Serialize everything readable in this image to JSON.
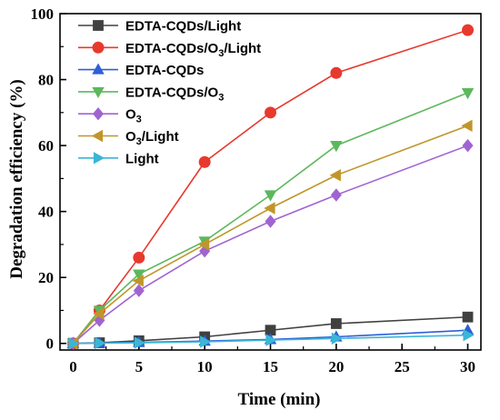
{
  "chart_data": {
    "type": "line",
    "title": "",
    "xlabel": "Time (min)",
    "ylabel": "Degradation efficiency  (%)",
    "xlim": [
      -1,
      31
    ],
    "ylim": [
      -2,
      100
    ],
    "xticks": [
      0,
      5,
      10,
      15,
      20,
      25,
      30
    ],
    "yticks": [
      0,
      20,
      40,
      60,
      80,
      100
    ],
    "grid": false,
    "legend_position": "top-left",
    "x": [
      0,
      2,
      5,
      10,
      15,
      20,
      30
    ],
    "series": [
      {
        "name": "EDTA-CQDs/Light",
        "label_parts": [
          {
            "text": "EDTA-CQDs/Light",
            "sub": false
          }
        ],
        "color": "#404040",
        "marker": "square",
        "values": [
          0,
          0.2,
          0.8,
          2,
          4,
          6,
          8
        ]
      },
      {
        "name": "EDTA-CQDs/O3/Light",
        "label_parts": [
          {
            "text": "EDTA-CQDs/O",
            "sub": false
          },
          {
            "text": "3",
            "sub": true
          },
          {
            "text": "/Light",
            "sub": false
          }
        ],
        "color": "#e8392e",
        "marker": "circle",
        "values": [
          0,
          10,
          26,
          55,
          70,
          82,
          95
        ]
      },
      {
        "name": "EDTA-CQDs",
        "label_parts": [
          {
            "text": "EDTA-CQDs",
            "sub": false
          }
        ],
        "color": "#2f5fd8",
        "marker": "triangle-up",
        "values": [
          0,
          0.1,
          0.3,
          0.7,
          1.2,
          2,
          4
        ]
      },
      {
        "name": "EDTA-CQDs/O3",
        "label_parts": [
          {
            "text": "EDTA-CQDs/O",
            "sub": false
          },
          {
            "text": "3",
            "sub": true
          }
        ],
        "color": "#5cb85c",
        "marker": "triangle-down",
        "values": [
          0,
          10,
          21,
          31,
          45,
          60,
          76
        ]
      },
      {
        "name": "O3",
        "label_parts": [
          {
            "text": "O",
            "sub": false
          },
          {
            "text": "3",
            "sub": true
          }
        ],
        "color": "#a064d2",
        "marker": "diamond",
        "values": [
          0,
          7,
          16,
          28,
          37,
          45,
          60
        ]
      },
      {
        "name": "O3/Light",
        "label_parts": [
          {
            "text": "O",
            "sub": false
          },
          {
            "text": "3",
            "sub": true
          },
          {
            "text": "/Light",
            "sub": false
          }
        ],
        "color": "#c0962a",
        "marker": "triangle-left",
        "values": [
          0,
          9,
          19,
          30,
          41,
          51,
          66
        ]
      },
      {
        "name": "Light",
        "label_parts": [
          {
            "text": "Light",
            "sub": false
          }
        ],
        "color": "#3ab6d6",
        "marker": "triangle-right",
        "values": [
          0,
          0.1,
          0.2,
          0.5,
          1,
          1.5,
          2.5
        ]
      }
    ]
  }
}
